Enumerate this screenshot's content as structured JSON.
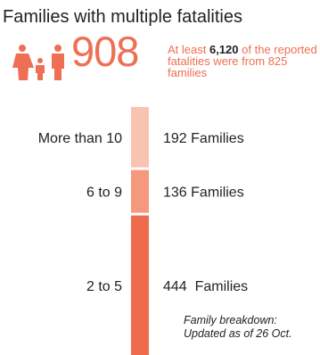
{
  "header": {
    "title": "Families with multiple fatalities",
    "total_families": "908",
    "note_prefix": "At least",
    "note_highlight": "6,120",
    "note_suffix": "of the reported fatalities were from 825 families"
  },
  "footnote": {
    "line1": "Family breakdown:",
    "line2": "Updated as of 26 Oct."
  },
  "colors": {
    "accent": "#ee6f54",
    "text": "#222222"
  },
  "icons": [
    "family-icon"
  ],
  "chart_data": {
    "type": "bar",
    "orientation": "stacked-vertical",
    "categories": [
      "More than 10",
      "6 to 9",
      "2 to 5"
    ],
    "values": [
      192,
      136,
      444
    ],
    "value_labels": [
      "192 Families",
      "136 Families",
      "444  Families"
    ],
    "colors": [
      "#f9c3b2",
      "#f4997e",
      "#ee6b4d"
    ]
  }
}
